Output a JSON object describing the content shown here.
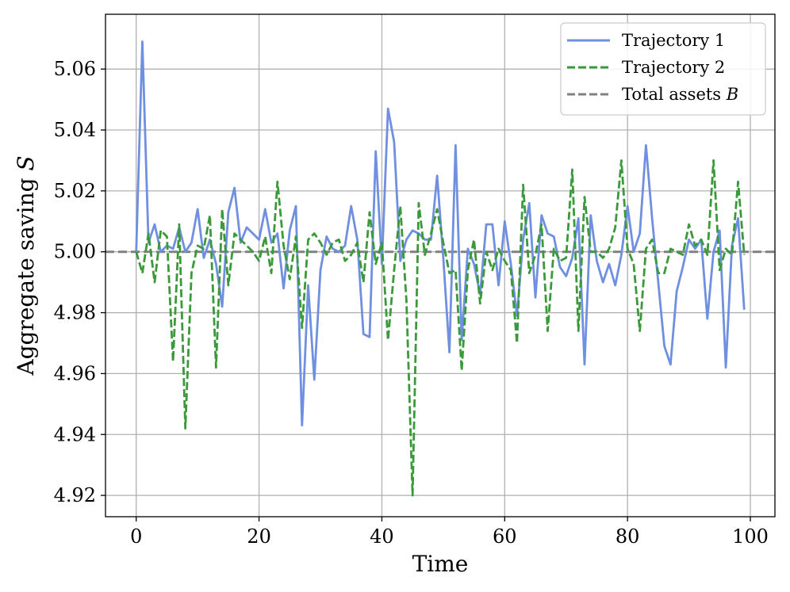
{
  "colors": {
    "trajectory1": "#6f8fe0",
    "trajectory2": "#3a9a3a",
    "baseline": "#808080"
  },
  "chart_data": {
    "type": "line",
    "xlabel": "Time",
    "ylabel_prefix": "Aggregate saving ",
    "ylabel_symbol": "S",
    "xlim": [
      -5,
      104
    ],
    "ylim": [
      4.913,
      5.078
    ],
    "xticks": [
      0,
      20,
      40,
      60,
      80,
      100
    ],
    "xtick_labels": [
      "0",
      "20",
      "40",
      "60",
      "80",
      "100"
    ],
    "yticks": [
      4.92,
      4.94,
      4.96,
      4.98,
      5.0,
      5.02,
      5.04,
      5.06
    ],
    "ytick_labels": [
      "4.92",
      "4.94",
      "4.96",
      "4.98",
      "5.00",
      "5.02",
      "5.04",
      "5.06"
    ],
    "grid": true,
    "legend_position": "top-right",
    "legend": [
      {
        "label": "Trajectory 1",
        "style": "solid",
        "color_key": "trajectory1"
      },
      {
        "label": "Trajectory 2",
        "style": "dashed",
        "color_key": "trajectory2"
      },
      {
        "label_prefix": "Total assets ",
        "label_symbol": "B",
        "style": "dashed",
        "color_key": "baseline"
      }
    ],
    "baseline_value": 5.0,
    "series": [
      {
        "name": "Trajectory 1",
        "x_start": 0,
        "values": [
          5.0,
          5.069,
          5.003,
          5.009,
          5.0,
          5.002,
          5.001,
          5.008,
          5.0,
          5.003,
          5.014,
          4.998,
          5.004,
          4.996,
          4.982,
          5.013,
          5.021,
          5.003,
          5.008,
          5.006,
          5.004,
          5.014,
          5.003,
          5.006,
          4.988,
          5.007,
          5.015,
          4.943,
          4.989,
          4.958,
          4.994,
          5.005,
          5.001,
          5.0,
          5.002,
          5.015,
          5.004,
          4.973,
          4.972,
          5.033,
          4.996,
          5.047,
          5.036,
          4.997,
          5.004,
          5.007,
          5.006,
          5.004,
          5.004,
          5.025,
          4.998,
          4.967,
          5.035,
          4.971,
          5.001,
          4.996,
          4.986,
          5.009,
          5.009,
          4.989,
          5.01,
          4.996,
          4.979,
          5.004,
          5.016,
          4.985,
          5.012,
          5.006,
          5.005,
          4.995,
          4.992,
          4.998,
          5.011,
          4.963,
          5.012,
          4.997,
          4.99,
          4.996,
          4.989,
          4.999,
          5.015,
          5.0,
          5.006,
          5.035,
          5.011,
          4.99,
          4.969,
          4.963,
          4.987,
          4.995,
          5.004,
          5.001,
          5.004,
          4.978,
          5.0,
          5.007,
          4.962,
          5.002,
          5.011,
          4.981
        ]
      },
      {
        "name": "Trajectory 2",
        "x_start": 0,
        "values": [
          5.0,
          4.993,
          5.006,
          4.99,
          5.007,
          5.005,
          4.964,
          5.009,
          4.942,
          4.993,
          5.002,
          5.001,
          5.012,
          4.962,
          5.014,
          4.989,
          5.006,
          5.004,
          5.002,
          5.0,
          4.997,
          5.005,
          4.993,
          5.023,
          5.002,
          4.991,
          5.005,
          4.975,
          5.004,
          5.006,
          5.003,
          4.999,
          5.003,
          5.004,
          4.997,
          4.999,
          5.003,
          4.99,
          5.013,
          4.996,
          5.003,
          4.971,
          4.994,
          5.015,
          4.984,
          4.92,
          5.016,
          4.999,
          5.006,
          5.014,
          5.003,
          4.993,
          4.994,
          4.961,
          4.994,
          5.004,
          4.983,
          5.0,
          4.994,
          5.001,
          4.997,
          4.994,
          4.97,
          5.022,
          4.993,
          4.999,
          5.009,
          4.974,
          5.001,
          4.997,
          4.998,
          5.027,
          4.974,
          5.018,
          5.0,
          5.0,
          4.998,
          5.001,
          5.008,
          5.03,
          5.001,
          4.996,
          4.974,
          5.001,
          5.004,
          4.993,
          4.993,
          5.001,
          5.0,
          4.999,
          5.009,
          5.002,
          5.004,
          4.999,
          5.03,
          4.994,
          5.001,
          4.999,
          5.023,
          4.999
        ]
      }
    ]
  }
}
